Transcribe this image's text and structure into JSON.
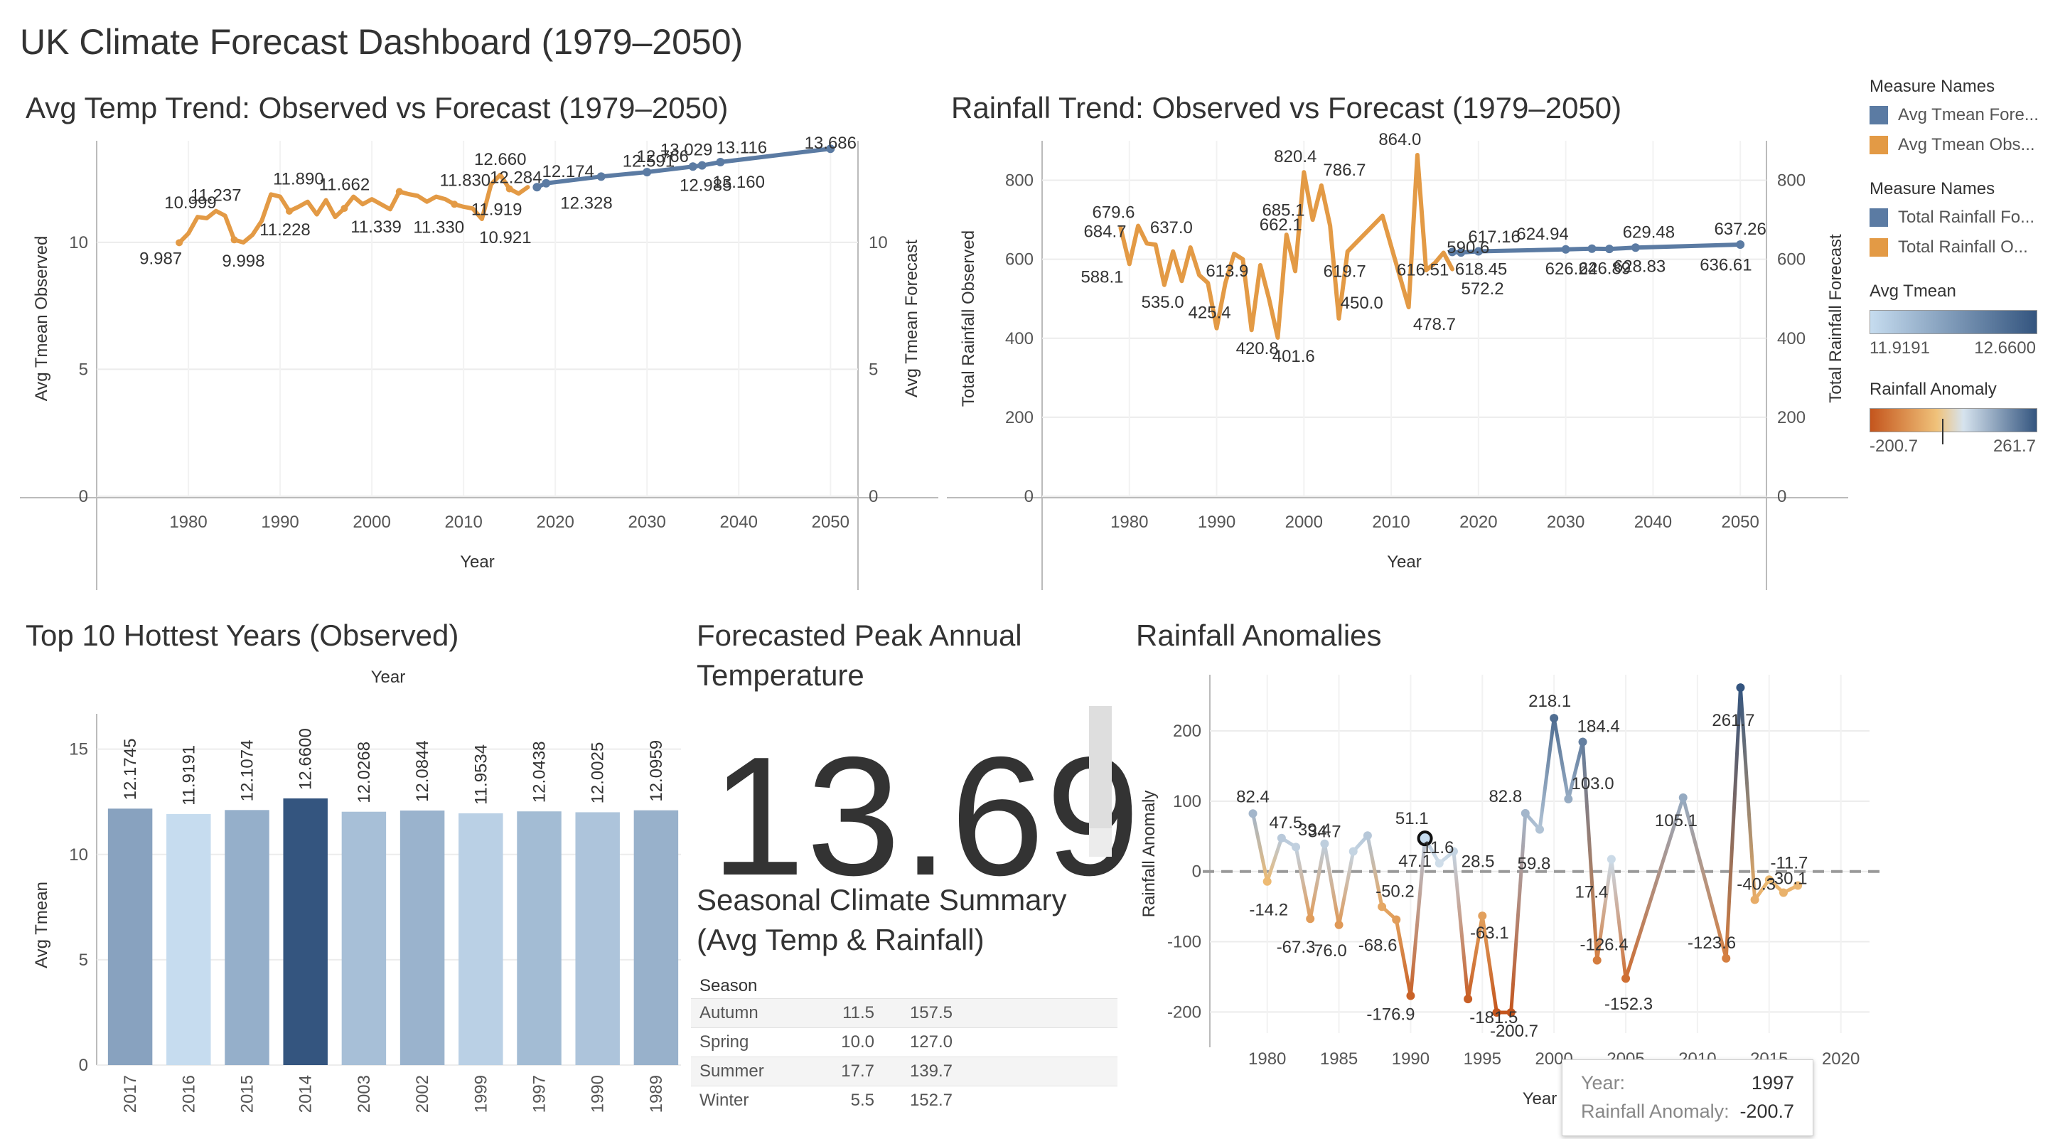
{
  "dashboard": {
    "title": "UK Climate Forecast Dashboard (1979–2050)"
  },
  "titles": {
    "temp": "Avg Temp Trend: Observed vs Forecast (1979–2050)",
    "rain": "Rainfall Trend: Observed vs Forecast (1979–2050)",
    "top10": "Top 10 Hottest Years (Observed)",
    "kpi_line1": "Forecasted Peak Annual",
    "kpi_line2": "Temperature",
    "seasonal_line1": "Seasonal Climate Summary",
    "seasonal_line2": "(Avg Temp & Rainfall)",
    "anomaly": "Rainfall Anomalies"
  },
  "kpi": {
    "value": "13.69"
  },
  "legend": {
    "measure_names_title_1": "Measure Names",
    "temp_items": [
      {
        "label": "Avg Tmean Fore...",
        "color": "#5b7ba3"
      },
      {
        "label": "Avg Tmean Obs...",
        "color": "#e39a45"
      }
    ],
    "measure_names_title_2": "Measure Names",
    "rain_items": [
      {
        "label": "Total Rainfall Fo...",
        "color": "#5b7ba3"
      },
      {
        "label": "Total Rainfall O...",
        "color": "#e39a45"
      }
    ],
    "avg_tmean_title": "Avg Tmean",
    "avg_tmean_min": "11.9191",
    "avg_tmean_max": "12.6600",
    "anomaly_title": "Rainfall Anomaly",
    "anomaly_min": "-200.7",
    "anomaly_max": "261.7"
  },
  "seasonal": {
    "header": "Season",
    "rows": [
      {
        "season": "Autumn",
        "temp": "11.5",
        "rain": "157.5"
      },
      {
        "season": "Spring",
        "temp": "10.0",
        "rain": "127.0"
      },
      {
        "season": "Summer",
        "temp": "17.7",
        "rain": "139.7"
      },
      {
        "season": "Winter",
        "temp": "5.5",
        "rain": "152.7"
      }
    ]
  },
  "tooltip": {
    "year_key": "Year:",
    "year_val": "1997",
    "anom_key": "Rainfall Anomaly:",
    "anom_val": "-200.7"
  },
  "chart_data": [
    {
      "id": "temp",
      "type": "line",
      "xlabel": "Year",
      "ylabel_left": "Avg Tmean Observed",
      "ylabel_right": "Avg Tmean Forecast",
      "xlim": [
        1970,
        2053
      ],
      "ylim": [
        0,
        14
      ],
      "xticks": [
        1980,
        1990,
        2000,
        2010,
        2020,
        2030,
        2040,
        2050
      ],
      "yticks": [
        0,
        5,
        10
      ],
      "series": [
        {
          "name": "Avg Tmean Obs...",
          "color": "#e39a45",
          "x": [
            1979,
            1980,
            1981,
            1982,
            1983,
            1984,
            1985,
            1986,
            1987,
            1988,
            1989,
            1990,
            1991,
            1992,
            1993,
            1994,
            1995,
            1996,
            1997,
            1998,
            1999,
            2000,
            2001,
            2002,
            2003,
            2004,
            2005,
            2006,
            2007,
            2008,
            2009,
            2010,
            2011,
            2012,
            2013,
            2014,
            2015,
            2016,
            2017
          ],
          "y": [
            9.987,
            10.35,
            10.999,
            10.95,
            11.237,
            11.05,
            10.1,
            9.998,
            10.3,
            10.85,
            11.89,
            11.8,
            11.228,
            11.4,
            11.6,
            11.1,
            11.662,
            11.0,
            11.339,
            11.8,
            11.5,
            11.7,
            11.5,
            11.3,
            12.0,
            11.9,
            11.83,
            11.6,
            11.8,
            11.7,
            11.5,
            11.4,
            11.33,
            10.921,
            12.284,
            12.66,
            12.1074,
            11.919,
            12.174
          ]
        },
        {
          "name": "Avg Tmean Fore...",
          "color": "#5b7ba3",
          "x": [
            2018,
            2019,
            2025,
            2030,
            2035,
            2036,
            2038,
            2050
          ],
          "y": [
            12.174,
            12.328,
            12.591,
            12.766,
            12.985,
            13.029,
            13.16,
            13.686
          ]
        }
      ],
      "labels": [
        {
          "x": 1979,
          "y": 9.987,
          "t": "9.987"
        },
        {
          "x": 1981,
          "y": 10.999,
          "t": "10.999"
        },
        {
          "x": 1983,
          "y": 11.237,
          "t": "11.237"
        },
        {
          "x": 1986,
          "y": 9.998,
          "t": "9.998"
        },
        {
          "x": 1991,
          "y": 11.228,
          "t": "11.228"
        },
        {
          "x": 1992,
          "y": 11.89,
          "t": "11.890"
        },
        {
          "x": 1997,
          "y": 11.662,
          "t": "11.662"
        },
        {
          "x": 2000,
          "y": 11.339,
          "t": "11.339"
        },
        {
          "x": 2008,
          "y": 11.83,
          "t": "11.830"
        },
        {
          "x": 2009,
          "y": 11.33,
          "t": "11.330"
        },
        {
          "x": 2013,
          "y": 10.921,
          "t": "10.921"
        },
        {
          "x": 2014,
          "y": 12.66,
          "t": "12.660"
        },
        {
          "x": 2014,
          "y": 12.284,
          "t": "12.284"
        },
        {
          "x": 2015,
          "y": 11.919,
          "t": "11.919"
        },
        {
          "x": 2020,
          "y": 12.174,
          "t": "12.174"
        },
        {
          "x": 2022,
          "y": 12.328,
          "t": "12.328"
        },
        {
          "x": 2028,
          "y": 12.591,
          "t": "12.591"
        },
        {
          "x": 2030,
          "y": 12.766,
          "t": "12.766"
        },
        {
          "x": 2035,
          "y": 12.985,
          "t": "12.985"
        },
        {
          "x": 2036,
          "y": 13.029,
          "t": "13.029"
        },
        {
          "x": 2040,
          "y": 13.16,
          "t": "13.160"
        },
        {
          "x": 2040,
          "y": 13.116,
          "t": "13.116"
        },
        {
          "x": 2050,
          "y": 13.686,
          "t": "13.686"
        }
      ]
    },
    {
      "id": "rain",
      "type": "line",
      "xlabel": "Year",
      "ylabel_left": "Total Rainfall Observed",
      "ylabel_right": "Total Rainfall Forecast",
      "xlim": [
        1970,
        2053
      ],
      "ylim": [
        0,
        900
      ],
      "xticks": [
        1980,
        1990,
        2000,
        2010,
        2020,
        2030,
        2040,
        2050
      ],
      "yticks": [
        0,
        200,
        400,
        600,
        800
      ],
      "series": [
        {
          "name": "Total Rainfall O...",
          "color": "#e39a45",
          "x": [
            1979,
            1980,
            1981,
            1982,
            1983,
            1984,
            1985,
            1986,
            1987,
            1988,
            1989,
            1990,
            1991,
            1992,
            1993,
            1994,
            1995,
            1996,
            1997,
            1998,
            1999,
            2000,
            2001,
            2002,
            2003,
            2004,
            2005,
            2009,
            2012,
            2013,
            2014,
            2015,
            2016,
            2017
          ],
          "y": [
            679.6,
            588.1,
            684.7,
            640.0,
            637.0,
            535.0,
            620.0,
            545.0,
            630.0,
            560.0,
            540.0,
            425.4,
            540.0,
            613.9,
            600.0,
            420.8,
            585.0,
            500.0,
            401.6,
            662.1,
            570.0,
            820.4,
            700.0,
            786.7,
            685.1,
            450.0,
            619.7,
            710.0,
            478.7,
            864.0,
            572.2,
            590.6,
            616.51,
            575.0
          ]
        },
        {
          "name": "Total Rainfall Fo...",
          "color": "#5b7ba3",
          "x": [
            2017,
            2018,
            2020,
            2030,
            2033,
            2035,
            2038,
            2050
          ],
          "y": [
            618.45,
            617.16,
            620.0,
            624.94,
            626.89,
            626.24,
            629.48,
            637.26
          ]
        }
      ],
      "labels": [
        {
          "x": 1979,
          "y": 679.6,
          "t": "679.6"
        },
        {
          "x": 1979,
          "y": 684.7,
          "t": "684.7"
        },
        {
          "x": 1979,
          "y": 588.1,
          "t": "588.1"
        },
        {
          "x": 1984,
          "y": 637.0,
          "t": "637.0"
        },
        {
          "x": 1983,
          "y": 535.0,
          "t": "535.0"
        },
        {
          "x": 1990,
          "y": 425.4,
          "t": "425.4"
        },
        {
          "x": 1993,
          "y": 613.9,
          "t": "613.9"
        },
        {
          "x": 1994,
          "y": 420.8,
          "t": "420.8"
        },
        {
          "x": 1997,
          "y": 685.1,
          "t": "685.1"
        },
        {
          "x": 1998,
          "y": 662.1,
          "t": "662.1"
        },
        {
          "x": 1998,
          "y": 401.6,
          "t": "401.6"
        },
        {
          "x": 2000,
          "y": 820.4,
          "t": "820.4"
        },
        {
          "x": 2004,
          "y": 786.7,
          "t": "786.7"
        },
        {
          "x": 2005,
          "y": 619.7,
          "t": "619.7"
        },
        {
          "x": 2005,
          "y": 450.0,
          "t": "450.0"
        },
        {
          "x": 2011,
          "y": 864.0,
          "t": "864.0"
        },
        {
          "x": 2012,
          "y": 616.51,
          "t": "616.51"
        },
        {
          "x": 2013,
          "y": 478.7,
          "t": "478.7"
        },
        {
          "x": 2018,
          "y": 590.6,
          "t": "590.6"
        },
        {
          "x": 2021,
          "y": 617.16,
          "t": "617.16"
        },
        {
          "x": 2019,
          "y": 618.45,
          "t": "618.45"
        },
        {
          "x": 2019,
          "y": 572.2,
          "t": "572.2"
        },
        {
          "x": 2028,
          "y": 624.94,
          "t": "624.94"
        },
        {
          "x": 2029,
          "y": 626.24,
          "t": "626.24"
        },
        {
          "x": 2033,
          "y": 626.89,
          "t": "626.89"
        },
        {
          "x": 2037,
          "y": 628.83,
          "t": "628.83"
        },
        {
          "x": 2040,
          "y": 629.48,
          "t": "629.48"
        },
        {
          "x": 2049,
          "y": 636.61,
          "t": "636.61"
        },
        {
          "x": 2050,
          "y": 637.26,
          "t": "637.26"
        }
      ]
    },
    {
      "id": "top10",
      "type": "bar",
      "xlabel": "Year",
      "ylabel": "Avg Tmean",
      "ylim": [
        0,
        16
      ],
      "yticks": [
        0,
        5,
        10,
        15
      ],
      "categories": [
        "2017",
        "2016",
        "2015",
        "2014",
        "2003",
        "2002",
        "1999",
        "1997",
        "1990",
        "1989"
      ],
      "values": [
        12.1745,
        11.9191,
        12.1074,
        12.66,
        12.0268,
        12.0844,
        11.9534,
        12.0438,
        12.0025,
        12.0959
      ],
      "value_labels": [
        "12.1745",
        "11.9191",
        "12.1074",
        "12.6600",
        "12.0268",
        "12.0844",
        "11.9534",
        "12.0438",
        "12.0025",
        "12.0959"
      ],
      "color_ramp": [
        "#c6dcef",
        "#34557f"
      ]
    },
    {
      "id": "anomaly",
      "type": "line",
      "xlabel": "Year",
      "ylabel": "Rainfall Anomaly",
      "xlim": [
        1976,
        2022
      ],
      "ylim": [
        -230,
        280
      ],
      "xticks": [
        1980,
        1985,
        1990,
        1995,
        2000,
        2005,
        2010,
        2015,
        2020
      ],
      "yticks": [
        -200,
        -100,
        0,
        100,
        200
      ],
      "reference_line": 0,
      "color_ramp": [
        "#c4551d",
        "#f0c27a",
        "#d6e3ee",
        "#34557f"
      ],
      "x": [
        1979,
        1980,
        1981,
        1982,
        1983,
        1984,
        1985,
        1986,
        1987,
        1988,
        1989,
        1990,
        1991,
        1992,
        1993,
        1994,
        1995,
        1996,
        1997,
        1998,
        1999,
        2000,
        2001,
        2002,
        2003,
        2004,
        2005,
        2009,
        2012,
        2013,
        2014,
        2015,
        2016,
        2017
      ],
      "y": [
        82.4,
        -14.2,
        47.5,
        34.7,
        -67.3,
        39.4,
        -76.0,
        28.5,
        51.1,
        -50.2,
        -68.6,
        -176.9,
        47.1,
        11.6,
        28.5,
        -181.5,
        -63.1,
        -200.7,
        -200.7,
        82.8,
        59.8,
        218.1,
        103.0,
        184.4,
        -126.4,
        17.4,
        -152.3,
        105.1,
        -123.6,
        261.7,
        -40.3,
        -11.7,
        -30.1,
        -20.0
      ],
      "labels": [
        {
          "x": 1979,
          "y": 82.4,
          "t": "82.4"
        },
        {
          "x": 1980,
          "y": -14.2,
          "t": "-14.2"
        },
        {
          "x": 1981,
          "y": 47.5,
          "t": "47.5"
        },
        {
          "x": 1983,
          "y": 34.7,
          "t": "34.7"
        },
        {
          "x": 1982,
          "y": -67.3,
          "t": "-67.3"
        },
        {
          "x": 1983,
          "y": 39.4,
          "t": "39.4"
        },
        {
          "x": 1984,
          "y": -76.0,
          "t": "-76.0"
        },
        {
          "x": 1989,
          "y": 51.1,
          "t": "51.1"
        },
        {
          "x": 1990,
          "y": -50.2,
          "t": "-50.2"
        },
        {
          "x": 1988,
          "y": -68.6,
          "t": "-68.6"
        },
        {
          "x": 1990,
          "y": -176.9,
          "t": "-176.9"
        },
        {
          "x": 1991,
          "y": 47.1,
          "t": "47.1"
        },
        {
          "x": 1993,
          "y": 11.6,
          "t": "11.6"
        },
        {
          "x": 1994,
          "y": 28.5,
          "t": "28.5"
        },
        {
          "x": 1995,
          "y": -63.1,
          "t": "-63.1"
        },
        {
          "x": 1995,
          "y": -181.5,
          "t": "-181.5"
        },
        {
          "x": 1999,
          "y": -200.7,
          "t": "-200.7"
        },
        {
          "x": 1998,
          "y": 82.8,
          "t": "82.8"
        },
        {
          "x": 1999,
          "y": 59.8,
          "t": "59.8"
        },
        {
          "x": 2000,
          "y": 218.1,
          "t": "218.1"
        },
        {
          "x": 2002,
          "y": 103.0,
          "t": "103.0"
        },
        {
          "x": 2003,
          "y": 184.4,
          "t": "184.4"
        },
        {
          "x": 2002,
          "y": -126.4,
          "t": "-126.4"
        },
        {
          "x": 2004,
          "y": 17.4,
          "t": "17.4"
        },
        {
          "x": 2005,
          "y": -152.3,
          "t": "-152.3"
        },
        {
          "x": 2010,
          "y": 105.1,
          "t": "105.1"
        },
        {
          "x": 2011,
          "y": -123.6,
          "t": "-123.6"
        },
        {
          "x": 2013,
          "y": 261.7,
          "t": "261.7"
        },
        {
          "x": 2014,
          "y": -40.3,
          "t": "-40.3"
        },
        {
          "x": 2016,
          "y": -11.7,
          "t": "-11.7"
        },
        {
          "x": 2017,
          "y": -30.1,
          "t": "-30.1"
        }
      ]
    }
  ]
}
